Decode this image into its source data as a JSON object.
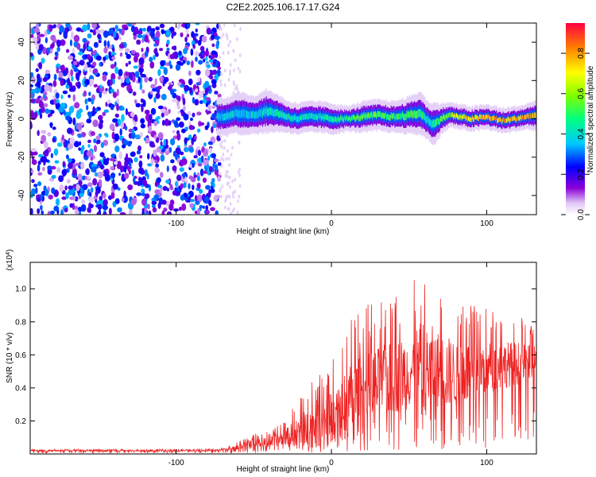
{
  "title": "C2E2.2025.106.17.17.G24",
  "colors": {
    "axis": "#000000",
    "snr_line": "#ee2222",
    "noise_points": "#7a2ee0"
  },
  "chart_data": [
    {
      "type": "heatmap",
      "xlabel": "Height of straight line (km)",
      "ylabel": "Frequency (Hz)",
      "xlim": [
        -194,
        132
      ],
      "ylim": [
        -50,
        50
      ],
      "x_ticks": [
        -100,
        0,
        100
      ],
      "x_tick_labels": [
        "-100",
        "0",
        "100"
      ],
      "y_ticks": [
        40,
        20,
        0,
        -20,
        -40
      ],
      "y_tick_labels": [
        "40",
        "20",
        "0",
        "-20",
        "-40"
      ],
      "colorbar": {
        "label": "Normalized spectral amplitude",
        "range": [
          0,
          0.95
        ],
        "ticks": [
          0.0,
          0.2,
          0.4,
          0.6,
          0.8
        ],
        "tick_labels": [
          "0.0",
          "0.2",
          "0.4",
          "0.6",
          "0.8"
        ],
        "colormap": "rainbow"
      },
      "noise_region": {
        "x_range": [
          -194,
          -72
        ],
        "y_range": [
          -50,
          50
        ],
        "amplitude": [
          0.05,
          0.35
        ]
      },
      "signal_track": {
        "x": [
          -74,
          -65,
          -58,
          -50,
          -42,
          -35,
          -28,
          -22,
          -15,
          -8,
          0,
          10,
          20,
          30,
          40,
          50,
          57,
          62,
          66,
          70,
          76,
          82,
          90,
          100,
          110,
          118,
          125,
          132
        ],
        "center_hz": [
          1,
          2,
          3,
          2,
          4,
          3,
          1,
          0,
          1,
          1,
          0,
          0,
          1,
          2,
          1,
          2,
          3,
          -1,
          -3,
          0,
          2,
          1,
          0,
          1,
          -1,
          0,
          1,
          2
        ],
        "width_hz": [
          6,
          6,
          7,
          6,
          7,
          6,
          5,
          5,
          5,
          5,
          5,
          4,
          5,
          5,
          5,
          6,
          7,
          6,
          7,
          5,
          4,
          4,
          4,
          4,
          4,
          4,
          4,
          5
        ],
        "peak_amplitude": [
          0.4,
          0.45,
          0.4,
          0.42,
          0.45,
          0.5,
          0.48,
          0.45,
          0.45,
          0.45,
          0.5,
          0.55,
          0.6,
          0.6,
          0.55,
          0.6,
          0.55,
          0.45,
          0.5,
          0.55,
          0.7,
          0.75,
          0.8,
          0.85,
          0.85,
          0.85,
          0.9,
          0.8
        ]
      }
    },
    {
      "type": "line",
      "xlabel": "Height of straight line (km)",
      "ylabel": "SNR (10 * v/v)",
      "scale_label": "(x10^4)",
      "xlim": [
        -194,
        132
      ],
      "ylim": [
        0,
        1.16
      ],
      "x_ticks": [
        -100,
        0,
        100
      ],
      "x_tick_labels": [
        "-100",
        "0",
        "100"
      ],
      "y_ticks": [
        0.2,
        0.4,
        0.6,
        0.8,
        1.0
      ],
      "y_tick_labels": [
        "0.2",
        "0.4",
        "0.6",
        "0.8",
        "1.0"
      ],
      "series": [
        {
          "x": [
            -194,
            -180,
            -160,
            -140,
            -120,
            -100,
            -80,
            -70,
            -60,
            -50,
            -40,
            -30,
            -20,
            -10,
            0,
            10,
            20,
            30,
            40,
            50,
            60,
            70,
            80,
            90,
            100,
            110,
            120,
            132
          ],
          "mean": [
            0.02,
            0.02,
            0.02,
            0.02,
            0.02,
            0.02,
            0.02,
            0.025,
            0.04,
            0.06,
            0.07,
            0.1,
            0.14,
            0.18,
            0.22,
            0.3,
            0.36,
            0.42,
            0.46,
            0.5,
            0.54,
            0.5,
            0.48,
            0.5,
            0.52,
            0.54,
            0.55,
            0.56
          ],
          "max": [
            0.03,
            0.03,
            0.03,
            0.03,
            0.03,
            0.03,
            0.03,
            0.04,
            0.08,
            0.12,
            0.14,
            0.2,
            0.36,
            0.5,
            0.56,
            0.8,
            0.9,
            0.92,
            0.96,
            1.0,
            1.16,
            1.02,
            0.95,
            0.92,
            0.88,
            0.86,
            0.84,
            0.76
          ]
        }
      ]
    }
  ]
}
